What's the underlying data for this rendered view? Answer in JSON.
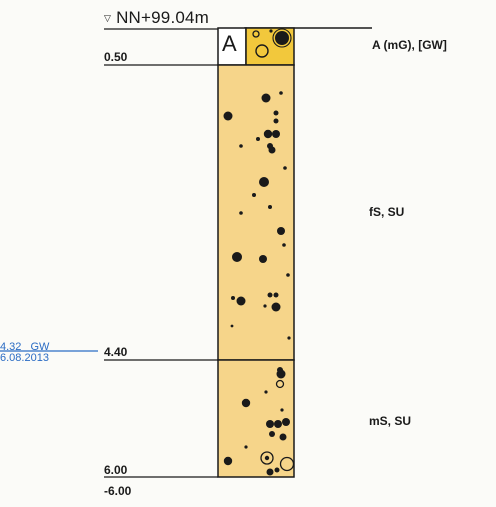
{
  "header": {
    "elevation_label": "NN+99.04m"
  },
  "column_letter": "A",
  "depths": {
    "d1": "0.50",
    "d2": "4.40",
    "d3": "6.00",
    "d_end": "-6.00"
  },
  "layers": [
    {
      "code": "A (mG), [GW]"
    },
    {
      "code": "fS, SU"
    },
    {
      "code": "mS, SU"
    }
  ],
  "groundwater": {
    "level": "4.32",
    "tag": "GW",
    "date": "6.08.2013"
  },
  "colors": {
    "sand_fill": "#f6d58a",
    "topsoil_fill": "#f2c83c",
    "line": "#1a1a1a",
    "groundwater": "#2b6cc4"
  }
}
